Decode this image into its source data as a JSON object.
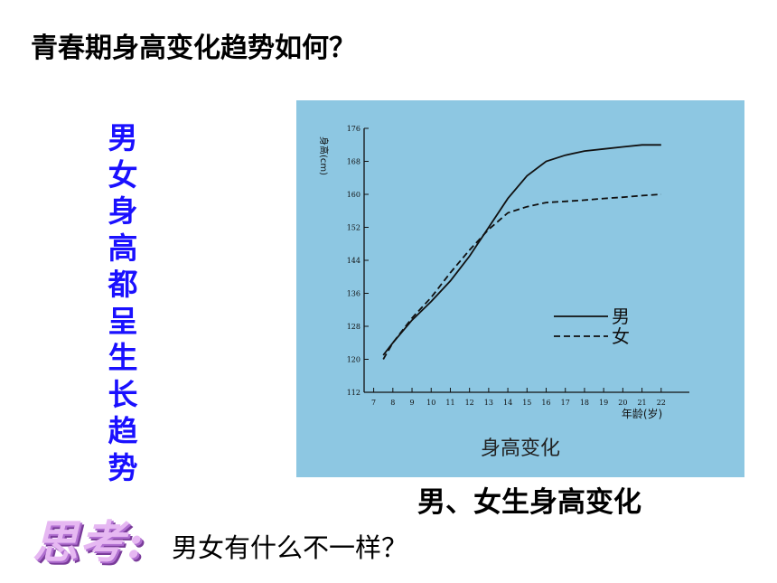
{
  "heading": "青春期身高变化趋势如何？",
  "side_text": "男女身高都呈生长趋势",
  "caption": "男、女生身高变化",
  "think_label": "思考:",
  "question": "男女有什么不一样？",
  "chart_data": {
    "type": "line",
    "title": "身高变化",
    "ylabel": "身高(cm)",
    "xlabel": "年龄(岁)",
    "x": [
      7,
      8,
      9,
      10,
      11,
      12,
      13,
      14,
      15,
      16,
      17,
      18,
      19,
      20,
      21,
      22
    ],
    "x_ticks": [
      7,
      8,
      9,
      10,
      11,
      12,
      13,
      14,
      15,
      16,
      17,
      18,
      19,
      20,
      21,
      22
    ],
    "y_ticks": [
      112,
      120,
      128,
      136,
      144,
      152,
      160,
      168,
      176
    ],
    "xlim": [
      6.5,
      23
    ],
    "ylim": [
      112,
      176
    ],
    "grid": false,
    "legend_position": "center-right",
    "series": [
      {
        "name": "男",
        "style": "solid",
        "x": [
          7.5,
          8,
          9,
          10,
          11,
          12,
          13,
          14,
          15,
          16,
          17,
          18,
          19,
          20,
          21,
          22
        ],
        "values": [
          121,
          124,
          129.5,
          134,
          139,
          145,
          152,
          159,
          164.5,
          168,
          169.5,
          170.5,
          171,
          171.5,
          172,
          172
        ]
      },
      {
        "name": "女",
        "style": "dashed",
        "x": [
          7.5,
          8,
          9,
          10,
          11,
          12,
          13,
          14,
          15,
          16,
          17,
          18,
          19,
          20,
          21,
          22
        ],
        "values": [
          120,
          124,
          130,
          135,
          141,
          146.5,
          151.5,
          155.5,
          157,
          158,
          158.3,
          158.6,
          159,
          159.3,
          159.7,
          160
        ]
      }
    ],
    "colors": {
      "background": "#8dc7e2",
      "ink": "#111111"
    }
  }
}
